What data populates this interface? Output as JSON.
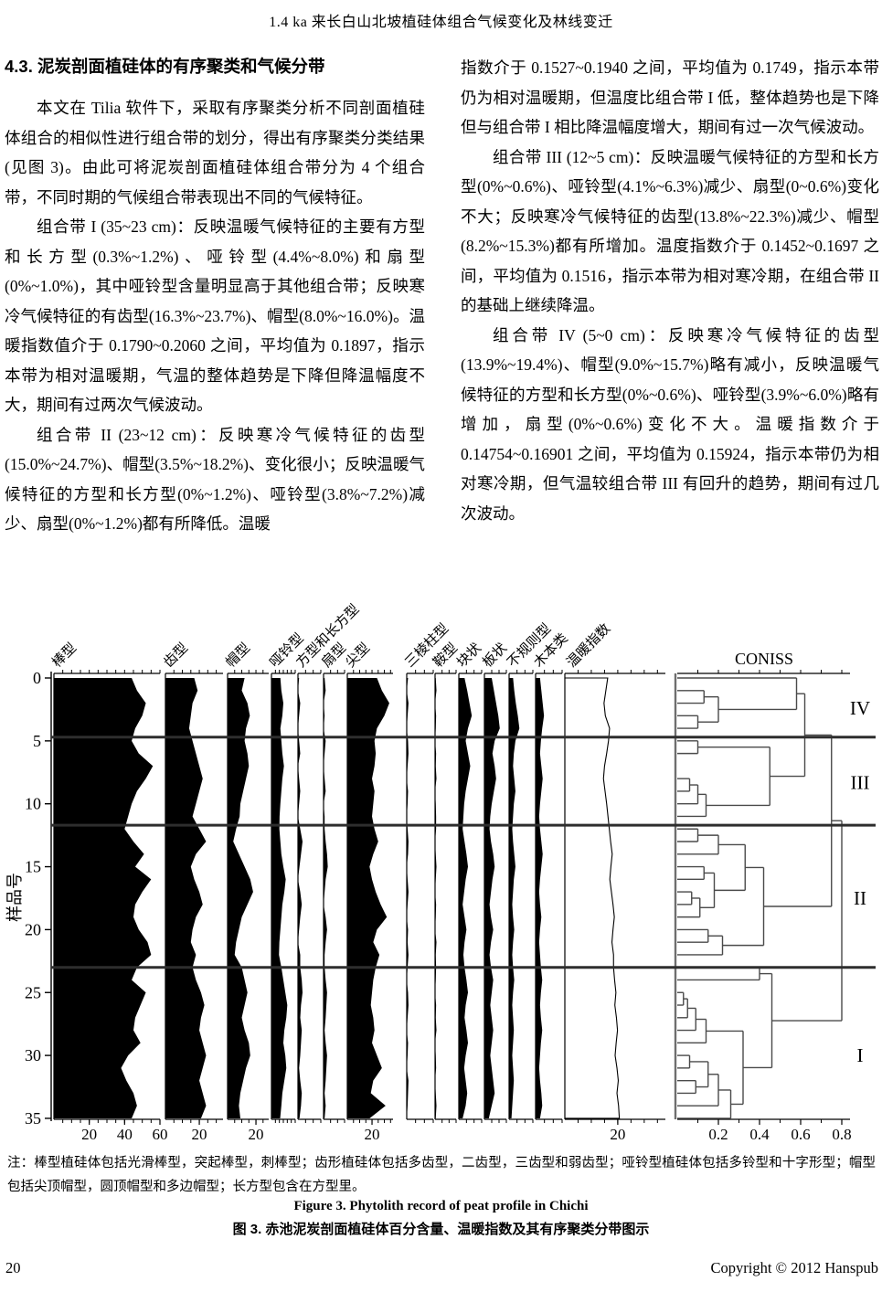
{
  "page": {
    "header_title": "1.4 ka 来长白山北坡植硅体组合气候变化及林线变迁",
    "footer": {
      "page_number": "20",
      "copyright": "Copyright © 2012 Hanspub"
    }
  },
  "article": {
    "section_heading": "4.3. 泥炭剖面植硅体的有序聚类和气候分带",
    "left_column": {
      "p1": "本文在 Tilia 软件下，采取有序聚类分析不同剖面植硅体组合的相似性进行组合带的划分，得出有序聚类分类结果(见图 3)。由此可将泥炭剖面植硅体组合带分为 4 个组合带，不同时期的气候组合带表现出不同的气候特征。",
      "p2": "组合带 I (35~23 cm)：反映温暖气候特征的主要有方型和长方型(0.3%~1.2%)、哑铃型(4.4%~8.0%)和扇型(0%~1.0%)，其中哑铃型含量明显高于其他组合带；反映寒冷气候特征的有齿型(16.3%~23.7%)、帽型(8.0%~16.0%)。温暖指数值介于 0.1790~0.2060 之间，平均值为 0.1897，指示本带为相对温暖期，气温的整体趋势是下降但降温幅度不大，期间有过两次气候波动。",
      "p3": "组合带 II (23~12 cm)：反映寒冷气候特征的齿型(15.0%~24.7%)、帽型(3.5%~18.2%)、变化很小；反映温暖气候特征的方型和长方型(0%~1.2%)、哑铃型(3.8%~7.2%)减少、扇型(0%~1.2%)都有所降低。温暖"
    },
    "right_column": {
      "p3_cont": "指数介于 0.1527~0.1940 之间，平均值为 0.1749，指示本带仍为相对温暖期，但温度比组合带 I 低，整体趋势也是下降但与组合带 I 相比降温幅度增大，期间有过一次气候波动。",
      "p4": "组合带 III (12~5 cm)：反映温暖气候特征的方型和长方型(0%~0.6%)、哑铃型(4.1%~6.3%)减少、扇型(0~0.6%)变化不大；反映寒冷气候特征的齿型(13.8%~22.3%)减少、帽型(8.2%~15.3%)都有所增加。温度指数介于 0.1452~0.1697 之间，平均值为 0.1516，指示本带为相对寒冷期，在组合带 II 的基础上继续降温。",
      "p5": "组合带 IV (5~0 cm)：反映寒冷气候特征的齿型(13.9%~19.4%)、帽型(9.0%~15.7%)略有减小，反映温暖气候特征的方型和长方型(0%~0.6%)、哑铃型(3.9%~6.0%)略有增加，扇型(0%~0.6%)变化不大。温暖指数介于 0.14754~0.16901 之间，平均值为 0.15924，指示本带仍为相对寒冷期，但气温较组合带 III 有回升的趋势，期间有过几次波动。"
    }
  },
  "figure": {
    "note": "注：棒型植硅体包括光滑棒型，突起棒型，刺棒型；齿形植硅体包括多齿型，二齿型，三齿型和弱齿型；哑铃型植硅体包括多铃型和十字形型；帽型包括尖顶帽型，圆顶帽型和多边帽型；长方型包含在方型里。",
    "caption_en": "Figure 3. Phytolith record of peat profile in Chichi",
    "caption_zh": "图 3. 赤池泥炭剖面植硅体百分含量、温暖指数及其有序聚类分带图示"
  },
  "chart_data": {
    "type": "area",
    "subtype": "stratigraphic-depth-profile-with-dendrogram",
    "y_axis": {
      "label": "样品号",
      "min": 0,
      "max": 35,
      "ticks": [
        0,
        5,
        10,
        15,
        20,
        25,
        30,
        35
      ]
    },
    "zones": {
      "labels": [
        "IV",
        "III",
        "II",
        "I"
      ],
      "boundaries_at_sample": [
        4.7,
        11.7,
        23.0
      ],
      "label_at_sample": [
        2.4,
        8.3,
        17.5,
        30.0
      ]
    },
    "series": [
      {
        "name": "棒型",
        "xmax": 60,
        "axis_ticks": [
          20,
          40,
          60
        ],
        "values": [
          44,
          47,
          52,
          50,
          46,
          44,
          48,
          56,
          52,
          47,
          44,
          42,
          40,
          45,
          51,
          46,
          55,
          50,
          46,
          45,
          48,
          53,
          55,
          47,
          44,
          52,
          49,
          46,
          45,
          49,
          42,
          38,
          41,
          45,
          47,
          44
        ]
      },
      {
        "name": "齿型",
        "xmax": 34,
        "axis_ticks": [
          20
        ],
        "values": [
          17,
          19,
          16,
          15,
          14,
          16,
          18,
          20,
          22,
          20,
          18,
          16,
          20,
          24,
          18,
          15,
          17,
          20,
          22,
          18,
          16,
          15,
          18,
          16,
          18,
          21,
          23,
          21,
          20,
          22,
          24,
          22,
          20,
          22,
          24,
          21
        ]
      },
      {
        "name": "帽型",
        "xmax": 29,
        "axis_ticks": [
          20
        ],
        "values": [
          12,
          10,
          14,
          15.7,
          13,
          12,
          14,
          15,
          13,
          11,
          9,
          8.5,
          6,
          4,
          8,
          12,
          16,
          18,
          14,
          10,
          8,
          6,
          5,
          10,
          12,
          14,
          12,
          10,
          12,
          15,
          16,
          13,
          11,
          9,
          8,
          9
        ]
      },
      {
        "name": "哑铃型",
        "xmax": 12,
        "axis_ticks": [],
        "values": [
          4.5,
          5,
          6,
          5.5,
          4.5,
          5,
          5.5,
          6.3,
          5.5,
          5,
          4.5,
          4.1,
          4,
          4.5,
          5,
          6,
          7.2,
          6.5,
          5.5,
          5,
          4.5,
          4,
          3.8,
          5,
          6,
          7,
          8,
          7.5,
          6.5,
          6,
          7,
          7.5,
          6.5,
          5.5,
          5,
          4.4
        ]
      },
      {
        "name": "方型和长方型",
        "xmax": 6,
        "axis_ticks": [],
        "values": [
          0.3,
          0,
          0.6,
          0.3,
          0,
          0.3,
          0.6,
          0,
          0.3,
          0.6,
          0.3,
          0,
          0.6,
          1.2,
          0.8,
          0.4,
          0,
          0.6,
          1,
          0.6,
          0.3,
          0,
          0.6,
          0.6,
          1,
          1.2,
          0.8,
          0.6,
          1,
          0.8,
          0.6,
          0.3,
          0.6,
          1,
          0.8,
          0.4
        ]
      },
      {
        "name": "扇型",
        "xmax": 6,
        "axis_ticks": [],
        "values": [
          0.3,
          0.6,
          0,
          0.3,
          0,
          0.6,
          0.3,
          0,
          0.3,
          0.6,
          0,
          0.3,
          0.3,
          0.6,
          1,
          1.2,
          0.6,
          0.3,
          0,
          0.6,
          1,
          0.6,
          0.3,
          0.3,
          0.6,
          1,
          0.8,
          0.6,
          0.3,
          0.6,
          1,
          0.8,
          0.6,
          0.3,
          0.6,
          0.3
        ]
      },
      {
        "name": "尖型",
        "xmax": 37,
        "axis_ticks": [
          20
        ],
        "values": [
          24,
          28,
          34,
          30,
          24,
          22,
          23,
          22,
          20,
          22,
          21,
          20,
          22,
          25,
          21,
          18,
          20,
          23,
          27,
          32,
          24,
          21,
          26,
          23,
          21,
          20,
          19,
          21,
          22,
          20,
          24,
          28,
          21,
          19,
          31,
          18
        ]
      },
      {
        "name": "三棱柱型",
        "xmax": 6,
        "axis_ticks": [],
        "values": [
          0.3,
          0,
          0.4,
          0.2,
          0,
          0.3,
          0.4,
          0.2,
          0,
          0.3,
          0.2,
          0,
          0.2,
          0.4,
          0.3,
          0,
          0.2,
          0.4,
          0.2,
          0,
          0.3,
          0.2,
          0.4,
          0.2,
          0,
          0.3,
          0.4,
          0.2,
          0,
          0.3,
          0.2,
          0,
          0.4,
          0.3,
          0.2,
          0
        ]
      },
      {
        "name": "鞍型",
        "xmax": 6,
        "axis_ticks": [],
        "values": [
          0.2,
          0.4,
          0,
          0.3,
          0.2,
          0,
          0.3,
          0.2,
          0.4,
          0,
          0.2,
          0.3,
          0.3,
          0,
          0.2,
          0.4,
          0.2,
          0,
          0.3,
          0.2,
          0,
          0.4,
          0.2,
          0.3,
          0.2,
          0,
          0.3,
          0.2,
          0.4,
          0,
          0.2,
          0.3,
          0,
          0.2,
          0.4,
          0.2
        ]
      },
      {
        "name": "块状",
        "xmax": 6,
        "axis_ticks": [],
        "values": [
          1.5,
          2.2,
          2.8,
          3.4,
          2.4,
          1.8,
          2.4,
          3,
          2.4,
          1.8,
          1.4,
          1.2,
          1,
          1.5,
          2,
          2.4,
          1.8,
          1.4,
          1,
          1.5,
          2,
          1.5,
          1.2,
          1.5,
          2,
          2.4,
          1.8,
          1.5,
          2,
          2.4,
          1.8,
          1.4,
          1.8,
          2.2,
          1.8,
          1
        ]
      },
      {
        "name": "板状",
        "xmax": 6,
        "axis_ticks": [],
        "values": [
          2,
          2.6,
          3.2,
          3.8,
          4.2,
          2.8,
          2.2,
          2.8,
          3.2,
          2.6,
          2,
          1.6,
          1.4,
          1.8,
          2.4,
          2.8,
          2.2,
          1.8,
          1.4,
          1.8,
          2.4,
          1.8,
          1.4,
          1.8,
          2.4,
          2,
          1.6,
          2,
          2.4,
          2,
          1.6,
          2,
          2.4,
          2.8,
          2,
          1.2
        ]
      },
      {
        "name": "不规则型",
        "xmax": 6,
        "axis_ticks": [],
        "values": [
          1,
          1.3,
          1.7,
          2.2,
          2.6,
          1.6,
          1.2,
          1,
          1.3,
          1.6,
          1.2,
          1,
          0.8,
          1,
          1.3,
          1.6,
          1.2,
          1,
          0.8,
          1,
          1.3,
          1,
          0.8,
          1,
          1.3,
          1,
          0.8,
          1,
          1.2,
          1,
          0.8,
          1,
          1.2,
          1,
          0.8,
          0.6
        ]
      },
      {
        "name": "木本类",
        "xmax": 6,
        "axis_ticks": [],
        "values": [
          1,
          1.3,
          1.6,
          1.9,
          1.5,
          1.2,
          1,
          1.3,
          1.6,
          1.3,
          1,
          0.8,
          1,
          1.3,
          1.6,
          1.3,
          1,
          0.8,
          1,
          1.3,
          1,
          0.8,
          1,
          1.2,
          1.5,
          1.2,
          1,
          1.2,
          1.5,
          1.2,
          1,
          0.8,
          1,
          1.3,
          1.5,
          1
        ]
      }
    ],
    "warm_index": {
      "name": "温暖指数",
      "xmax": 38,
      "axis_ticks": [
        20
      ],
      "scale_note": "index x100",
      "values": [
        16.2,
        15.5,
        14.8,
        15.3,
        16.9,
        16.5,
        15.8,
        15,
        14.6,
        15.2,
        15.8,
        16.3,
        16.8,
        17.3,
        17.9,
        17.4,
        17,
        17.6,
        18.2,
        18.7,
        18.2,
        17.8,
        18.4,
        18.4,
        18.8,
        19.3,
        18.9,
        19.5,
        19.9,
        19.4,
        19,
        19.7,
        20.2,
        19.7,
        20.3,
        20.6
      ]
    },
    "coniss": {
      "title": "CONISS",
      "axis_ticks": [
        0.2,
        0.4,
        0.6,
        0.8
      ],
      "merges": [
        [
          1,
          2,
          0.13
        ],
        [
          3,
          4,
          0.1
        ],
        [
          "m0",
          "m1",
          0.2
        ],
        [
          0,
          "m2",
          0.58
        ],
        [
          5,
          6,
          0.1
        ],
        [
          8,
          9,
          0.06
        ],
        [
          "m5",
          10,
          0.1
        ],
        [
          "m6",
          11,
          0.14
        ],
        [
          "m4",
          "m7",
          0.45
        ],
        [
          12,
          13,
          0.1
        ],
        [
          "m9",
          14,
          0.2
        ],
        [
          15,
          16,
          0.13
        ],
        [
          17,
          18,
          0.07
        ],
        [
          "m12",
          19,
          0.11
        ],
        [
          "m11",
          "m13",
          0.18
        ],
        [
          20,
          21,
          0.15
        ],
        [
          "m15",
          22,
          0.22
        ],
        [
          "m10",
          "m14",
          0.33
        ],
        [
          "m17",
          "m16",
          0.42
        ],
        [
          23,
          24,
          0.4
        ],
        [
          25,
          26,
          0.03
        ],
        [
          "m20",
          27,
          0.05
        ],
        [
          "m21",
          28,
          0.09
        ],
        [
          "m22",
          29,
          0.14
        ],
        [
          30,
          31,
          0.06
        ],
        [
          32,
          33,
          0.09
        ],
        [
          "m24",
          "m25",
          0.15
        ],
        [
          "m26",
          34,
          0.2
        ],
        [
          "m27",
          35,
          0.26
        ],
        [
          "m23",
          "m28",
          0.32
        ],
        [
          "m19",
          "m29",
          0.46
        ],
        [
          "m3",
          "m8",
          0.62
        ],
        [
          "m31",
          "m18",
          0.75
        ],
        [
          "m32",
          "m30",
          0.8
        ]
      ]
    }
  }
}
